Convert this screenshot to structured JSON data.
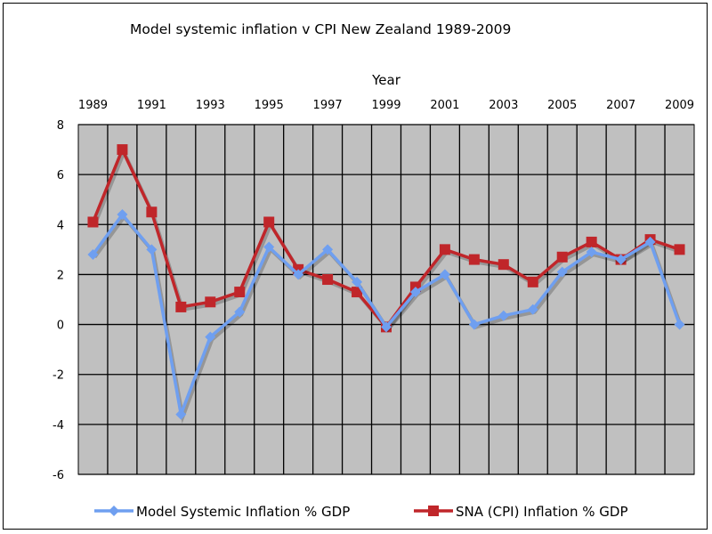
{
  "chart_data": {
    "type": "line",
    "title": "Model systemic inflation v CPI New Zealand 1989-2009",
    "xlabel": "Year",
    "ylabel": "",
    "x": [
      1989,
      1990,
      1991,
      1992,
      1993,
      1994,
      1995,
      1996,
      1997,
      1998,
      1999,
      2000,
      2001,
      2002,
      2003,
      2004,
      2005,
      2006,
      2007,
      2008,
      2009
    ],
    "x_tick_labels": [
      "1989",
      "1991",
      "1993",
      "1995",
      "1997",
      "1999",
      "2001",
      "2003",
      "2005",
      "2007",
      "2009"
    ],
    "y_tick_labels": [
      "8",
      "6",
      "4",
      "2",
      "0",
      "-2",
      "-4",
      "-6"
    ],
    "ylim": [
      -6,
      8
    ],
    "x_axis_position": "top",
    "grid": true,
    "legend_position": "bottom",
    "series": [
      {
        "name": "Model Systemic Inflation % GDP",
        "color": "#6f9ff0",
        "marker": "diamond",
        "values": [
          2.8,
          4.4,
          3.0,
          -3.6,
          -0.5,
          0.5,
          3.1,
          2.0,
          3.0,
          1.7,
          -0.1,
          1.3,
          2.0,
          0.0,
          0.35,
          0.6,
          2.1,
          2.9,
          2.6,
          3.3,
          0.0
        ]
      },
      {
        "name": "SNA (CPI) Inflation % GDP",
        "color": "#c0262a",
        "marker": "square",
        "values": [
          4.1,
          7.0,
          4.5,
          0.7,
          0.9,
          1.3,
          4.1,
          2.2,
          1.8,
          1.3,
          -0.1,
          1.5,
          3.0,
          2.6,
          2.4,
          1.7,
          2.7,
          3.3,
          2.6,
          3.4,
          3.0
        ]
      }
    ]
  }
}
